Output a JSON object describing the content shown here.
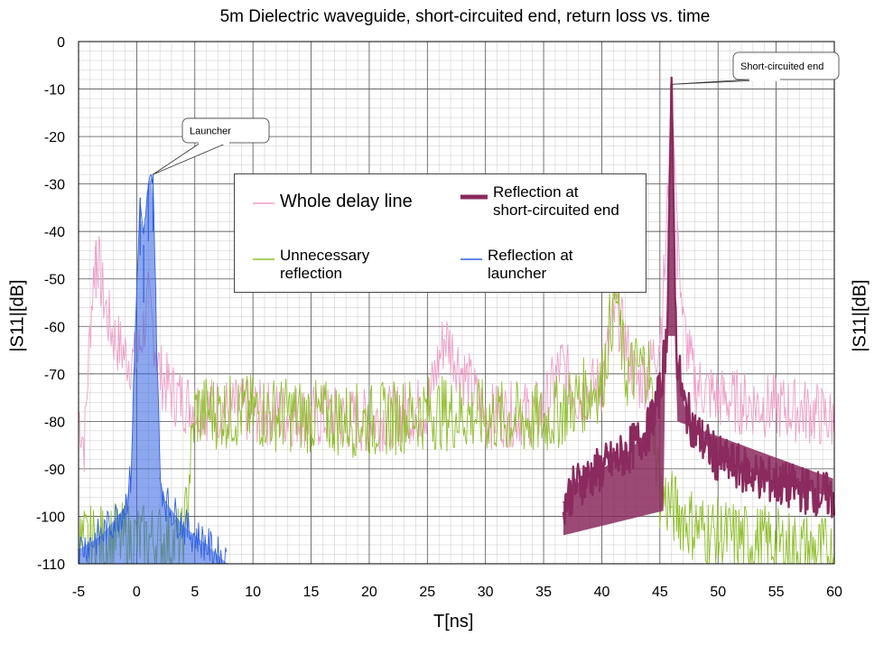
{
  "chart_data": {
    "type": "line",
    "title": "5m Dielectric waveguide, short-circuited end, return loss vs. time",
    "xlabel": "T[ns]",
    "ylabel": "|S11|[dB]",
    "ylabel_right": "|S11|[dB]",
    "xlim": [
      -5,
      60
    ],
    "ylim": [
      -110,
      0
    ],
    "x_ticks": [
      -5,
      0,
      5,
      10,
      15,
      20,
      25,
      30,
      35,
      40,
      45,
      50,
      55,
      60
    ],
    "y_ticks": [
      0,
      -10,
      -20,
      -30,
      -40,
      -50,
      -60,
      -70,
      -80,
      -90,
      -100,
      -110
    ],
    "x_tick_labels": [
      "-5",
      "0",
      "5",
      "10",
      "15",
      "20",
      "25",
      "30",
      "35",
      "40",
      "45",
      "50",
      "55",
      "60"
    ],
    "y_tick_labels": [
      "0",
      "-10",
      "-20",
      "-30",
      "-40",
      "-50",
      "-60",
      "-70",
      "-80",
      "-90",
      "-100",
      "-110"
    ],
    "grid": true,
    "legend_position": "top-center",
    "series": [
      {
        "name": "Whole delay line",
        "color": "#ef9fc8",
        "x": [
          -5,
          -4.5,
          -4,
          -3.5,
          -3,
          -2.5,
          -2,
          -1.5,
          -1,
          0,
          1,
          1.5,
          2,
          3,
          5,
          10,
          15,
          20,
          25,
          26.5,
          30,
          35,
          36.5,
          38,
          40,
          41.2,
          43,
          44,
          45,
          45.5,
          46,
          46.5,
          47,
          48,
          50,
          52,
          55,
          58,
          60
        ],
        "y": [
          -78,
          -85,
          -60,
          -42,
          -52,
          -58,
          -62,
          -64,
          -66,
          -68,
          -55,
          -62,
          -70,
          -74,
          -77,
          -78,
          -79,
          -80,
          -77,
          -62,
          -79,
          -78,
          -68,
          -75,
          -72,
          -56,
          -72,
          -70,
          -62,
          -45,
          -9,
          -38,
          -60,
          -72,
          -75,
          -76,
          -77,
          -78,
          -80
        ]
      },
      {
        "name": "Unnecessary reflection",
        "color": "#8fbf2a",
        "x": [
          -5,
          -2,
          0,
          2,
          4,
          5,
          10,
          15,
          20,
          25,
          30,
          35,
          40,
          41.2,
          42,
          44,
          45,
          46,
          48,
          50,
          55,
          60
        ],
        "y": [
          -106,
          -105,
          -105,
          -105,
          -106,
          -78,
          -78,
          -79,
          -80,
          -78,
          -79,
          -80,
          -72,
          -52,
          -70,
          -68,
          -95,
          -98,
          -102,
          -104,
          -106,
          -108
        ]
      },
      {
        "name": "Reflection at short-circuited end",
        "color": "#8a2a5e",
        "x": [
          36.7,
          38,
          40,
          42,
          44,
          45,
          45.6,
          46,
          46.4,
          47,
          48,
          50,
          55,
          60
        ],
        "y": [
          -97,
          -93,
          -90,
          -87,
          -82,
          -74,
          -62,
          -9,
          -65,
          -76,
          -82,
          -88,
          -93,
          -96
        ]
      },
      {
        "name": "Reflection at launcher",
        "color": "#3060e0",
        "x": [
          -5,
          -3,
          -1,
          -0.5,
          0,
          0.3,
          0.6,
          1,
          1.4,
          1.7,
          2,
          2.5,
          4,
          6,
          7.8
        ],
        "y": [
          -107,
          -104,
          -98,
          -92,
          -52,
          -33,
          -43,
          -30,
          -28,
          -60,
          -92,
          -97,
          -102,
          -106,
          -110
        ]
      }
    ],
    "annotations": [
      {
        "text": "Launcher",
        "x": 1.4,
        "y": -28
      },
      {
        "text": "Short-circuited end",
        "x": 46,
        "y": -9
      }
    ],
    "legend_entries": [
      {
        "line1": "Whole delay line",
        "line2": ""
      },
      {
        "line1": "Reflection at",
        "line2": "short-circuited end"
      },
      {
        "line1": "Unnecessary",
        "line2": "reflection"
      },
      {
        "line1": "Reflection at",
        "line2": "launcher"
      }
    ]
  }
}
